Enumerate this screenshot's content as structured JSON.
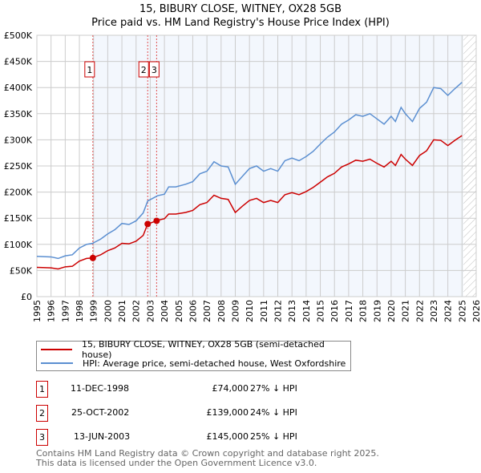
{
  "chart_data": {
    "type": "line",
    "title": "15, BIBURY CLOSE, WITNEY, OX28 5GB",
    "subtitle": "Price paid vs. HM Land Registry's House Price Index (HPI)",
    "xlim": [
      1995,
      2026
    ],
    "ylim": [
      0,
      500000
    ],
    "x_ticks": [
      "1995",
      "1996",
      "1997",
      "1998",
      "1999",
      "2000",
      "2001",
      "2002",
      "2003",
      "2004",
      "2005",
      "2006",
      "2007",
      "2008",
      "2009",
      "2010",
      "2011",
      "2012",
      "2013",
      "2014",
      "2015",
      "2016",
      "2017",
      "2018",
      "2019",
      "2020",
      "2021",
      "2022",
      "2023",
      "2024",
      "2025",
      "2026"
    ],
    "y_ticks": [
      {
        "v": 0,
        "label": "£0"
      },
      {
        "v": 50000,
        "label": "£50K"
      },
      {
        "v": 100000,
        "label": "£100K"
      },
      {
        "v": 150000,
        "label": "£150K"
      },
      {
        "v": 200000,
        "label": "£200K"
      },
      {
        "v": 250000,
        "label": "£250K"
      },
      {
        "v": 300000,
        "label": "£300K"
      },
      {
        "v": 350000,
        "label": "£350K"
      },
      {
        "v": 400000,
        "label": "£400K"
      },
      {
        "v": 450000,
        "label": "£450K"
      },
      {
        "v": 500000,
        "label": "£500K"
      }
    ],
    "grid": true,
    "series": [
      {
        "name": "15, BIBURY CLOSE, WITNEY, OX28 5GB (semi-detached house)",
        "color": "#cc0000",
        "x": [
          1995,
          1996,
          1996.5,
          1997,
          1997.5,
          1998,
          1998.5,
          1998.95,
          1999,
          1999.5,
          2000,
          2000.5,
          2001,
          2001.5,
          2002,
          2002.5,
          2002.82,
          2003.45,
          2003.5,
          2004,
          2004.3,
          2004.8,
          2005.5,
          2006,
          2006.5,
          2007,
          2007.5,
          2008,
          2008.5,
          2009,
          2009.5,
          2010,
          2010.5,
          2011,
          2011.5,
          2012,
          2012.5,
          2013,
          2013.5,
          2014,
          2014.5,
          2015,
          2015.5,
          2016,
          2016.5,
          2017,
          2017.5,
          2018,
          2018.5,
          2019,
          2019.5,
          2020,
          2020.3,
          2020.7,
          2021,
          2021.5,
          2022,
          2022.5,
          2023,
          2023.5,
          2024,
          2024.5,
          2025
        ],
        "values": [
          56,
          55,
          53,
          57,
          58,
          68,
          73,
          74,
          75,
          80,
          88,
          93,
          102,
          101,
          106,
          117,
          139,
          145,
          146,
          149,
          158,
          158,
          161,
          165,
          176,
          180,
          194,
          188,
          186,
          161,
          173,
          184,
          188,
          180,
          184,
          180,
          195,
          199,
          195,
          201,
          209,
          219,
          229,
          236,
          248,
          254,
          261,
          259,
          263,
          255,
          248,
          259,
          251,
          272,
          263,
          251,
          270,
          279,
          300,
          299,
          289,
          299,
          308
        ]
      },
      {
        "name": "HPI: Average price, semi-detached house, West Oxfordshire",
        "color": "#5b8fd1",
        "x": [
          1995,
          1996,
          1996.5,
          1997,
          1997.5,
          1998,
          1998.5,
          1998.95,
          1999,
          1999.5,
          2000,
          2000.5,
          2001,
          2001.5,
          2002,
          2002.5,
          2002.82,
          2003.45,
          2003.5,
          2004,
          2004.3,
          2004.8,
          2005.5,
          2006,
          2006.5,
          2007,
          2007.5,
          2008,
          2008.5,
          2009,
          2009.5,
          2010,
          2010.5,
          2011,
          2011.5,
          2012,
          2012.5,
          2013,
          2013.5,
          2014,
          2014.5,
          2015,
          2015.5,
          2016,
          2016.5,
          2017,
          2017.5,
          2018,
          2018.5,
          2019,
          2019.5,
          2020,
          2020.3,
          2020.7,
          2021,
          2021.5,
          2022,
          2022.5,
          2023,
          2023.5,
          2024,
          2024.5,
          2025
        ],
        "values": [
          77,
          76,
          73,
          78,
          80,
          93,
          100,
          102,
          103,
          110,
          120,
          128,
          140,
          138,
          145,
          160,
          183,
          192,
          193,
          196,
          210,
          210,
          215,
          220,
          235,
          240,
          258,
          250,
          248,
          215,
          230,
          245,
          250,
          240,
          245,
          240,
          260,
          265,
          260,
          268,
          278,
          292,
          305,
          315,
          330,
          338,
          348,
          345,
          350,
          340,
          330,
          345,
          335,
          362,
          350,
          335,
          360,
          372,
          400,
          398,
          385,
          398,
          410
        ]
      }
    ],
    "value_unit": 1000,
    "sales": [
      {
        "n": "1",
        "x": 1998.95,
        "value": 74000,
        "date": "11-DEC-1998",
        "price": "£74,000",
        "hpi": "27% ↓ HPI"
      },
      {
        "n": "2",
        "x": 2002.82,
        "value": 139000,
        "date": "25-OCT-2002",
        "price": "£139,000",
        "hpi": "24% ↓ HPI"
      },
      {
        "n": "3",
        "x": 2003.45,
        "value": 145000,
        "date": "13-JUN-2003",
        "price": "£145,000",
        "hpi": "25% ↓ HPI"
      }
    ],
    "forecast_from": 2025.1
  },
  "legend": {
    "property": "15, BIBURY CLOSE, WITNEY, OX28 5GB (semi-detached house)",
    "hpi": "HPI: Average price, semi-detached house, West Oxfordshire"
  },
  "footer": {
    "line1": "Contains HM Land Registry data © Crown copyright and database right 2025.",
    "line2": "This data is licensed under the Open Government Licence v3.0."
  }
}
